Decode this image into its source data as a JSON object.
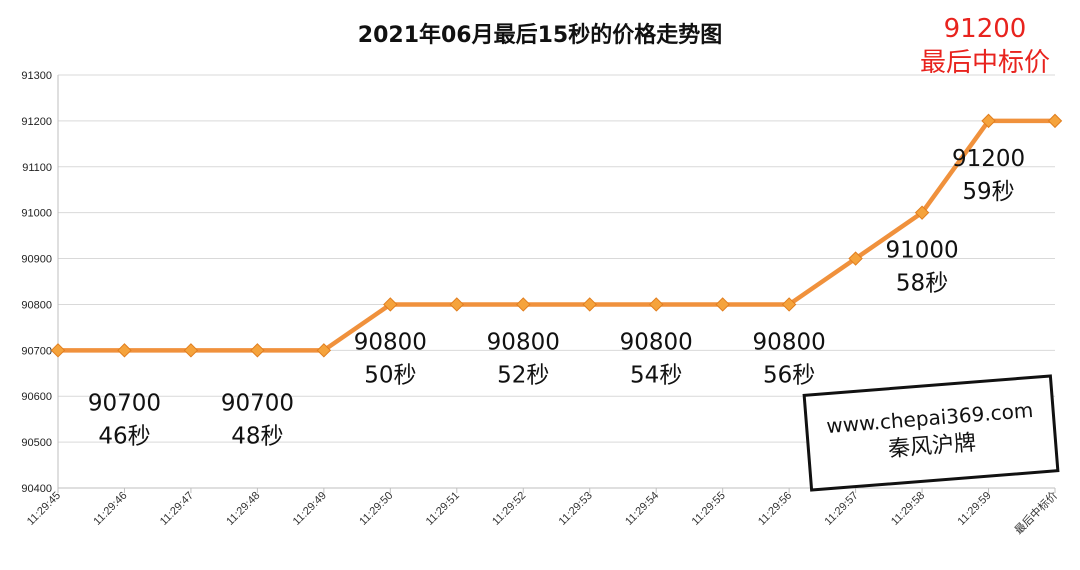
{
  "chart_data": {
    "type": "line",
    "title": "2021年06月最后15秒的价格走势图",
    "xlabel": "",
    "ylabel": "",
    "categories": [
      "11:29:45",
      "11:29:46",
      "11:29:47",
      "11:29:48",
      "11:29:49",
      "11:29:50",
      "11:29:51",
      "11:29:52",
      "11:29:53",
      "11:29:54",
      "11:29:55",
      "11:29:56",
      "11:29:57",
      "11:29:58",
      "11:29:59",
      "最后中标价"
    ],
    "values": [
      90700,
      90700,
      90700,
      90700,
      90700,
      90800,
      90800,
      90800,
      90800,
      90800,
      90800,
      90800,
      90900,
      91000,
      91200,
      91200
    ],
    "ylim": [
      90400,
      91300
    ],
    "yticks": [
      90400,
      90500,
      90600,
      90700,
      90800,
      90900,
      91000,
      91100,
      91200,
      91300
    ],
    "grid": true,
    "colors": {
      "line": "#f0913c",
      "marker": "#f5a33c",
      "marker_edge": "#e07d1e",
      "grid": "#d9d9d9",
      "axis": "#bfbfbf",
      "annotation_red": "#e8231e"
    },
    "annotations": [
      {
        "index": 1,
        "value": "90700",
        "label": "46秒"
      },
      {
        "index": 3,
        "value": "90700",
        "label": "48秒"
      },
      {
        "index": 5,
        "value": "90800",
        "label": "50秒"
      },
      {
        "index": 7,
        "value": "90800",
        "label": "52秒"
      },
      {
        "index": 9,
        "value": "90800",
        "label": "54秒"
      },
      {
        "index": 11,
        "value": "90800",
        "label": "56秒"
      },
      {
        "index": 13,
        "value": "91000",
        "label": "58秒"
      },
      {
        "index": 14,
        "value": "91200",
        "label": "59秒"
      }
    ]
  },
  "final_callout": {
    "value": "91200",
    "label": "最后中标价"
  },
  "watermark": {
    "url": "www.chepai369.com",
    "brand": "秦风沪牌"
  }
}
